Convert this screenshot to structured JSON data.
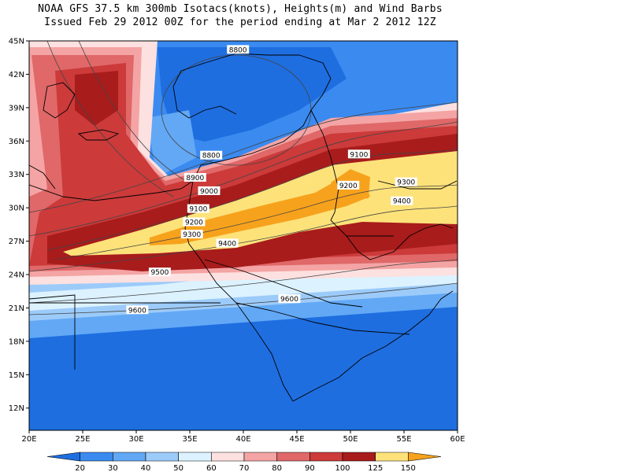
{
  "title_line1": "NOAA GFS 37.5 km 300mb Isotacs(knots), Heights(m) and Wind Barbs",
  "title_line2": "Issued Feb 29 2012 00Z for the period ending at Mar 2 2012 12Z",
  "map": {
    "lon_range": [
      20,
      60
    ],
    "lat_range": [
      10,
      45
    ],
    "lat_labels": [
      "12N",
      "15N",
      "18N",
      "21N",
      "24N",
      "27N",
      "30N",
      "33N",
      "36N",
      "39N",
      "42N",
      "45N"
    ],
    "lat_values": [
      12,
      15,
      18,
      21,
      24,
      27,
      30,
      33,
      36,
      39,
      42,
      45
    ],
    "lon_labels": [
      "20E",
      "25E",
      "30E",
      "35E",
      "40E",
      "45E",
      "50E",
      "55E",
      "60E"
    ],
    "lon_values": [
      20,
      25,
      30,
      35,
      40,
      45,
      50,
      55,
      60
    ],
    "height_contour_labels": [
      {
        "text": "8800",
        "lon": 39.5,
        "lat": 44.2
      },
      {
        "text": "8800",
        "lon": 37.0,
        "lat": 34.7
      },
      {
        "text": "8900",
        "lon": 35.5,
        "lat": 32.7
      },
      {
        "text": "9000",
        "lon": 36.8,
        "lat": 31.5
      },
      {
        "text": "9100",
        "lon": 35.8,
        "lat": 29.9
      },
      {
        "text": "9200",
        "lon": 35.4,
        "lat": 28.7
      },
      {
        "text": "9300",
        "lon": 35.2,
        "lat": 27.6
      },
      {
        "text": "9400",
        "lon": 38.5,
        "lat": 26.8
      },
      {
        "text": "9500",
        "lon": 32.2,
        "lat": 24.2
      },
      {
        "text": "9600",
        "lon": 44.3,
        "lat": 21.8
      },
      {
        "text": "9600",
        "lon": 30.1,
        "lat": 20.8
      },
      {
        "text": "9100",
        "lon": 50.8,
        "lat": 34.8
      },
      {
        "text": "9200",
        "lon": 49.8,
        "lat": 32.0
      },
      {
        "text": "9300",
        "lon": 55.2,
        "lat": 32.3
      },
      {
        "text": "9400",
        "lon": 54.8,
        "lat": 30.6
      }
    ]
  },
  "colorbar": {
    "labels": [
      "20",
      "30",
      "40",
      "50",
      "60",
      "70",
      "80",
      "90",
      "100",
      "125",
      "150"
    ],
    "colors": [
      "#1e6ee0",
      "#3a8af0",
      "#62a8f5",
      "#9ccbfa",
      "#dcf2ff",
      "#fde0e0",
      "#f4a4a4",
      "#e06868",
      "#cc3a3a",
      "#a81c1c",
      "#fde27a",
      "#f7a21c"
    ]
  }
}
